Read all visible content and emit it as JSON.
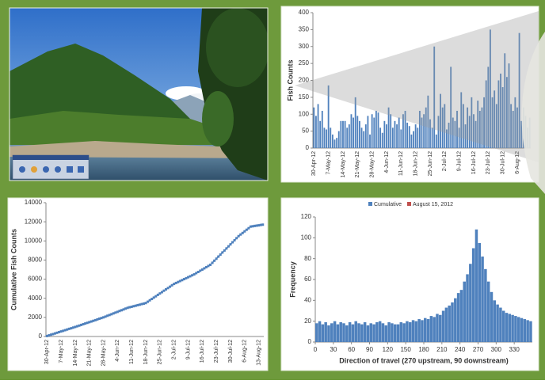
{
  "chart_data": [
    {
      "type": "bar",
      "y_label": "Fish Counts",
      "color": "#4f81bd",
      "categories": [
        "30-Apr-12",
        null,
        null,
        null,
        null,
        null,
        null,
        "7-May-12",
        null,
        null,
        null,
        null,
        null,
        null,
        "14-May-12",
        null,
        null,
        null,
        null,
        null,
        null,
        "21-May-12",
        null,
        null,
        null,
        null,
        null,
        null,
        "28-May-12",
        null,
        null,
        null,
        null,
        null,
        null,
        "4-Jun-12",
        null,
        null,
        null,
        null,
        null,
        null,
        "11-Jun-12",
        null,
        null,
        null,
        null,
        null,
        null,
        "18-Jun-12",
        null,
        null,
        null,
        null,
        null,
        null,
        "25-Jun-12",
        null,
        null,
        null,
        null,
        null,
        null,
        "2-Jul-12",
        null,
        null,
        null,
        null,
        null,
        null,
        "9-Jul-12",
        null,
        null,
        null,
        null,
        null,
        null,
        "16-Jul-12",
        null,
        null,
        null,
        null,
        null,
        null,
        "23-Jul-12",
        null,
        null,
        null,
        null,
        null,
        null,
        "30-Jul-12",
        null,
        null,
        null,
        null,
        null,
        null,
        "6-Aug-12",
        null,
        null,
        null,
        null,
        null,
        null
      ],
      "values": [
        120,
        95,
        130,
        80,
        110,
        60,
        55,
        185,
        60,
        40,
        25,
        30,
        50,
        80,
        80,
        80,
        60,
        70,
        100,
        90,
        150,
        95,
        80,
        60,
        50,
        70,
        95,
        40,
        100,
        90,
        110,
        105,
        60,
        45,
        80,
        70,
        120,
        100,
        60,
        80,
        70,
        90,
        55,
        100,
        110,
        75,
        65,
        40,
        50,
        70,
        60,
        110,
        90,
        100,
        120,
        155,
        85,
        60,
        300,
        40,
        95,
        160,
        120,
        130,
        55,
        75,
        240,
        90,
        80,
        110,
        60,
        165,
        130,
        70,
        120,
        95,
        150,
        100,
        80,
        140,
        110,
        120,
        150,
        200,
        240,
        350,
        150,
        170,
        130,
        200,
        220,
        180,
        280,
        210,
        250,
        130,
        110,
        150,
        120,
        340,
        80,
        120,
        95,
        60,
        90
      ],
      "ylim": [
        0,
        400
      ],
      "yticks": [
        0,
        50,
        100,
        150,
        200,
        250,
        300,
        350,
        400
      ]
    },
    {
      "type": "line",
      "y_label": "Cumulative Fish Counts",
      "color": "#4f81bd",
      "categories": [
        "30-Apr-12",
        null,
        null,
        null,
        null,
        null,
        null,
        "7-May-12",
        null,
        null,
        null,
        null,
        null,
        null,
        "14-May-12",
        null,
        null,
        null,
        null,
        null,
        null,
        "21-May-12",
        null,
        null,
        null,
        null,
        null,
        null,
        "28-May-12",
        null,
        null,
        null,
        null,
        null,
        null,
        "4-Jun-12",
        null,
        null,
        null,
        null,
        null,
        null,
        "11-Jun-12",
        null,
        null,
        null,
        null,
        null,
        null,
        "18-Jun-12",
        null,
        null,
        null,
        null,
        null,
        null,
        "25-Jun-12",
        null,
        null,
        null,
        null,
        null,
        null,
        "2-Jul-12",
        null,
        null,
        null,
        null,
        null,
        null,
        "9-Jul-12",
        null,
        null,
        null,
        null,
        null,
        null,
        "16-Jul-12",
        null,
        null,
        null,
        null,
        null,
        null,
        "23-Jul-12",
        null,
        null,
        null,
        null,
        null,
        null,
        "30-Jul-12",
        null,
        null,
        null,
        null,
        null,
        null,
        "6-Aug-12",
        null,
        null,
        null,
        null,
        null,
        null,
        "13-Aug-12",
        null,
        null
      ],
      "values": [
        50,
        120,
        190,
        250,
        320,
        390,
        460,
        530,
        590,
        660,
        730,
        800,
        860,
        930,
        1000,
        1070,
        1140,
        1210,
        1290,
        1360,
        1430,
        1500,
        1570,
        1640,
        1710,
        1790,
        1860,
        1930,
        2000,
        2080,
        2170,
        2250,
        2330,
        2420,
        2500,
        2580,
        2670,
        2750,
        2830,
        2920,
        3000,
        3060,
        3110,
        3170,
        3220,
        3280,
        3330,
        3390,
        3440,
        3500,
        3640,
        3790,
        3930,
        4070,
        4210,
        4360,
        4500,
        4640,
        4790,
        4930,
        5070,
        5210,
        5360,
        5500,
        5600,
        5700,
        5800,
        5900,
        6000,
        6100,
        6200,
        6300,
        6400,
        6500,
        6630,
        6750,
        6880,
        7000,
        7130,
        7250,
        7380,
        7500,
        7710,
        7930,
        8140,
        8360,
        8570,
        8790,
        9000,
        9210,
        9430,
        9640,
        9860,
        10070,
        10290,
        10500,
        10670,
        10830,
        11000,
        11170,
        11330,
        11500,
        11530,
        11570,
        11600,
        11630,
        11670,
        11700
      ],
      "ylim": [
        0,
        14000
      ],
      "yticks": [
        0,
        2000,
        4000,
        6000,
        8000,
        10000,
        12000,
        14000
      ]
    },
    {
      "type": "histogram",
      "x_label": "Direction of travel (270 upstream, 90 downstream)",
      "y_label": "Frequency",
      "legend": "top",
      "bins": [
        0,
        5,
        10,
        15,
        20,
        25,
        30,
        35,
        40,
        45,
        50,
        55,
        60,
        65,
        70,
        75,
        80,
        85,
        90,
        95,
        100,
        105,
        110,
        115,
        120,
        125,
        130,
        135,
        140,
        145,
        150,
        155,
        160,
        165,
        170,
        175,
        180,
        185,
        190,
        195,
        200,
        205,
        210,
        215,
        220,
        225,
        230,
        235,
        240,
        245,
        250,
        255,
        260,
        265,
        270,
        275,
        280,
        285,
        290,
        295,
        300,
        305,
        310,
        315,
        320,
        325,
        330,
        335,
        340,
        345,
        350,
        355,
        360
      ],
      "series": [
        {
          "name": "Cumulative",
          "color": "#4f81bd",
          "values": [
            18,
            20,
            17,
            19,
            16,
            18,
            20,
            17,
            19,
            18,
            16,
            19,
            17,
            20,
            18,
            17,
            19,
            16,
            18,
            17,
            19,
            20,
            18,
            16,
            19,
            18,
            17,
            17,
            19,
            18,
            20,
            19,
            21,
            20,
            22,
            21,
            23,
            22,
            25,
            24,
            27,
            26,
            30,
            33,
            35,
            38,
            42,
            47,
            50,
            58,
            65,
            75,
            90,
            108,
            95,
            82,
            70,
            58,
            48,
            40,
            36,
            33,
            30,
            28,
            27,
            26,
            25,
            24,
            23,
            22,
            21,
            20
          ]
        },
        {
          "name": "August 15, 2012",
          "color": "#c0504d",
          "values": [
            null,
            null,
            null,
            null,
            null,
            null,
            null,
            null,
            null,
            null,
            null,
            null,
            null,
            null,
            null,
            null,
            null,
            null,
            null,
            null,
            null,
            null,
            null,
            null,
            null,
            null,
            null,
            null,
            null,
            null,
            null,
            null,
            null,
            null,
            null,
            null,
            null,
            null,
            null,
            null,
            null,
            null,
            null,
            null,
            null,
            null,
            null,
            null,
            null,
            null,
            null,
            null,
            null,
            null,
            null,
            null,
            null,
            null,
            null,
            null,
            null,
            null,
            null,
            null,
            null,
            null,
            null,
            null,
            null,
            null,
            null,
            null
          ]
        }
      ],
      "xlim": [
        0,
        360
      ],
      "xticks": [
        0,
        30,
        60,
        90,
        120,
        150,
        180,
        210,
        240,
        270,
        300,
        330
      ],
      "ylim": [
        0,
        120
      ],
      "yticks": [
        0,
        20,
        40,
        60,
        80,
        100,
        120
      ]
    }
  ]
}
